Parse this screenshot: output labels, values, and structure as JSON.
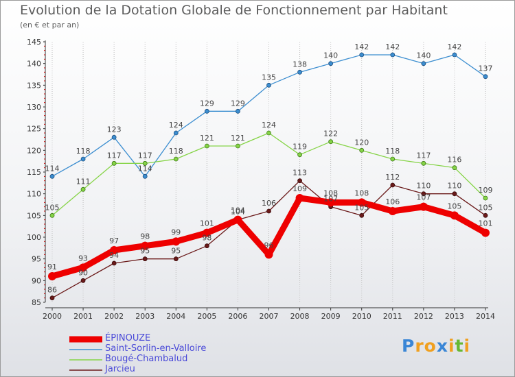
{
  "header": {
    "title": "Evolution de la Dotation Globale de Fonctionnement par Habitant",
    "subtitle": "(en € et par an)"
  },
  "logo": {
    "letters": [
      "P",
      "r",
      "o",
      "x",
      "i",
      "t",
      "i"
    ]
  },
  "colors": {
    "epinouze": "#ee0000",
    "saint_sorlin": "#3c8ed0",
    "bouge": "#86d447",
    "jarcieu": "#6b1a1a",
    "axis": "#333333",
    "tick": "#cc0000",
    "grid": "#bfbfbf"
  },
  "chart_data": {
    "type": "line",
    "title": "Evolution de la Dotation Globale de Fonctionnement par Habitant",
    "subtitle": "(en € et par an)",
    "x": [
      "2000",
      "2001",
      "2002",
      "2003",
      "2004",
      "2005",
      "2006",
      "2007",
      "2008",
      "2009",
      "2010",
      "2011",
      "2012",
      "2013",
      "2014"
    ],
    "ylim": [
      85,
      145
    ],
    "yticks": [
      85,
      90,
      95,
      100,
      105,
      110,
      115,
      120,
      125,
      130,
      135,
      140,
      145
    ],
    "grid": "vertical",
    "legend_position": "bottom-left",
    "series": [
      {
        "name": "ÉPINOUZE",
        "values": [
          91,
          93,
          97,
          98,
          99,
          101,
          104,
          96,
          109,
          108,
          108,
          106,
          107,
          105,
          101
        ]
      },
      {
        "name": "Saint-Sorlin-en-Valloire",
        "values": [
          114,
          118,
          123,
          114,
          124,
          129,
          129,
          135,
          138,
          140,
          142,
          142,
          140,
          142,
          137
        ]
      },
      {
        "name": "Bougé-Chambalud",
        "values": [
          105,
          111,
          117,
          117,
          118,
          121,
          121,
          124,
          119,
          122,
          120,
          118,
          117,
          116,
          109
        ]
      },
      {
        "name": "Jarcieu",
        "values": [
          86,
          90,
          94,
          95,
          95,
          98,
          104,
          106,
          113,
          107,
          105,
          112,
          110,
          110,
          105
        ]
      }
    ]
  }
}
